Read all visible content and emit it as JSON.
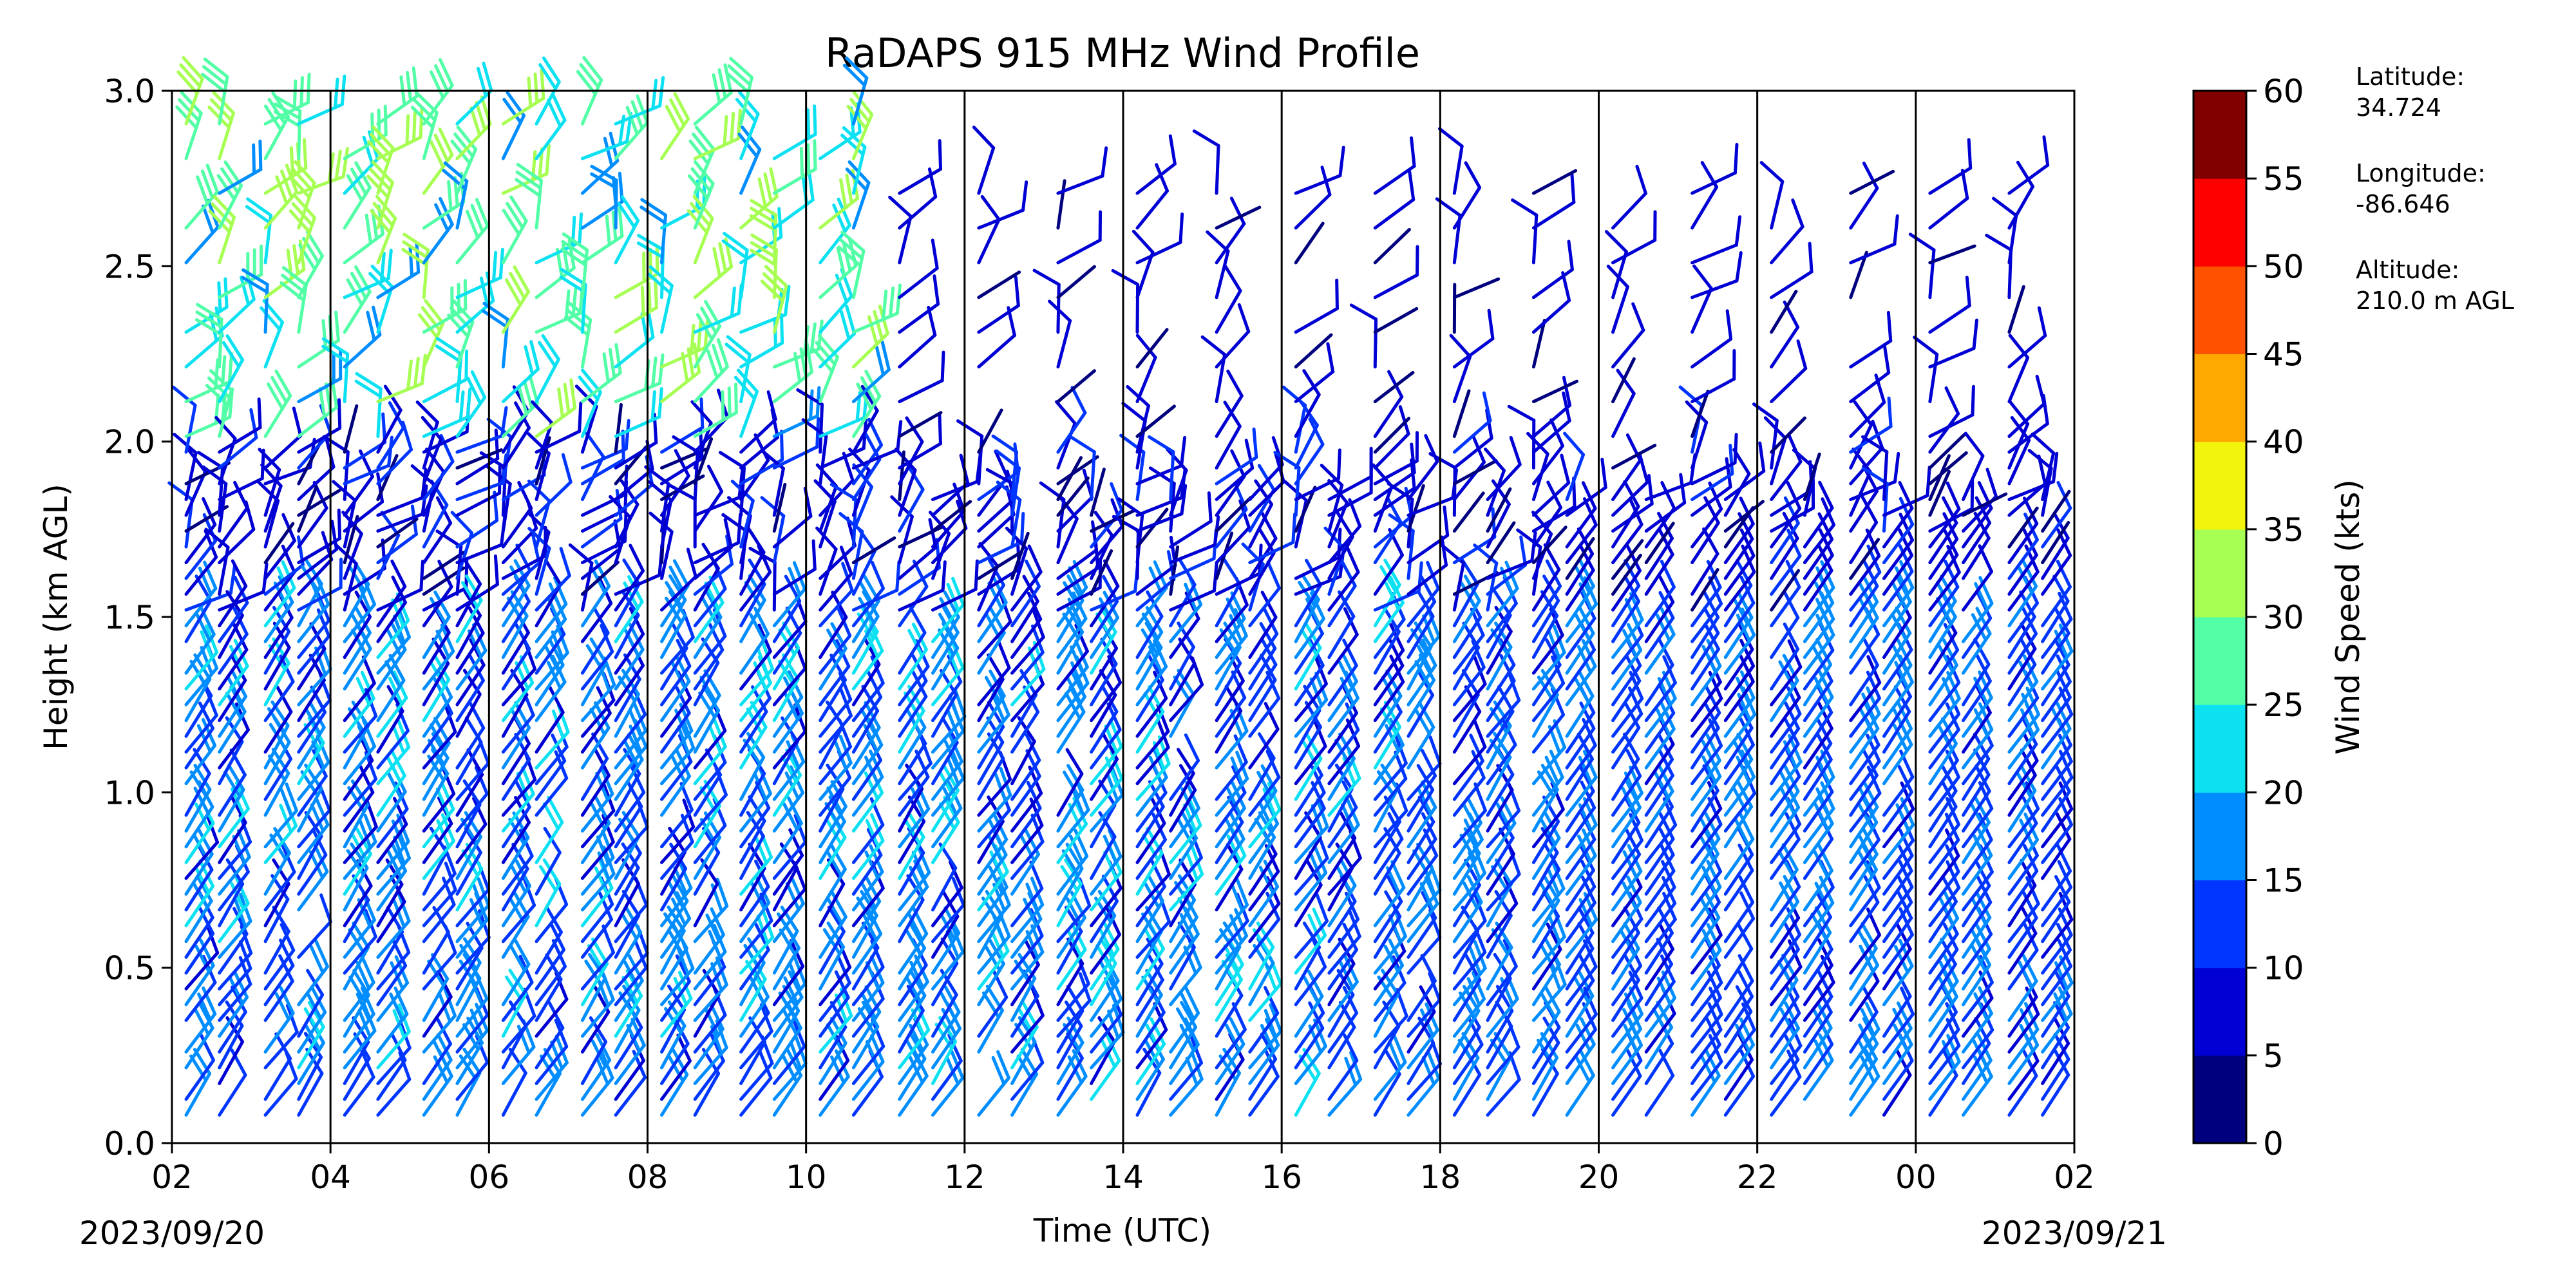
{
  "chart_data": {
    "type": "wind-barb-profile",
    "title": "RaDAPS 915 MHz Wind Profile",
    "xlabel": "Time (UTC)",
    "ylabel": "Height (km AGL)",
    "date_start": "2023/09/20",
    "date_end": "2023/09/21",
    "x_ticks": [
      "02",
      "04",
      "06",
      "08",
      "10",
      "12",
      "14",
      "16",
      "18",
      "20",
      "22",
      "00",
      "02"
    ],
    "y_ticks": [
      "0.0",
      "0.5",
      "1.0",
      "1.5",
      "2.0",
      "2.5",
      "3.0"
    ],
    "ylim": [
      0,
      3
    ],
    "grid": "vertical lines every 2 hours",
    "colorbar": {
      "label": "Wind Speed (kts)",
      "ticks": [
        "0",
        "5",
        "10",
        "15",
        "20",
        "25",
        "30",
        "35",
        "40",
        "45",
        "50",
        "55",
        "60"
      ],
      "range": [
        0,
        60
      ],
      "colors": [
        "#00007f",
        "#0000d4",
        "#0035ff",
        "#008dff",
        "#0ce1f2",
        "#52ffa6",
        "#a6ff52",
        "#f2f40c",
        "#ffa900",
        "#ff5200",
        "#ff0000",
        "#800000"
      ]
    },
    "site_info": {
      "lat_label": "Latitude:",
      "lat_value": "34.724",
      "lon_label": "Longitude:",
      "lon_value": "-86.646",
      "alt_label": "Altitude:",
      "alt_value": "210.0 m AGL"
    },
    "columns_hours_from_start": [
      0,
      0.42,
      1,
      1.42,
      2,
      2.42,
      3,
      3.42,
      4,
      4.42,
      5,
      5.42,
      6,
      6.42,
      7,
      7.42,
      8,
      8.42,
      9,
      9.42,
      10,
      10.42,
      11,
      11.42,
      12,
      12.42,
      13,
      13.42,
      14,
      14.42,
      15,
      15.42,
      16,
      16.42,
      17,
      17.42,
      18,
      18.42,
      19,
      19.42,
      20,
      20.42,
      21,
      21.42,
      22,
      22.42,
      23,
      23.42
    ]
  }
}
